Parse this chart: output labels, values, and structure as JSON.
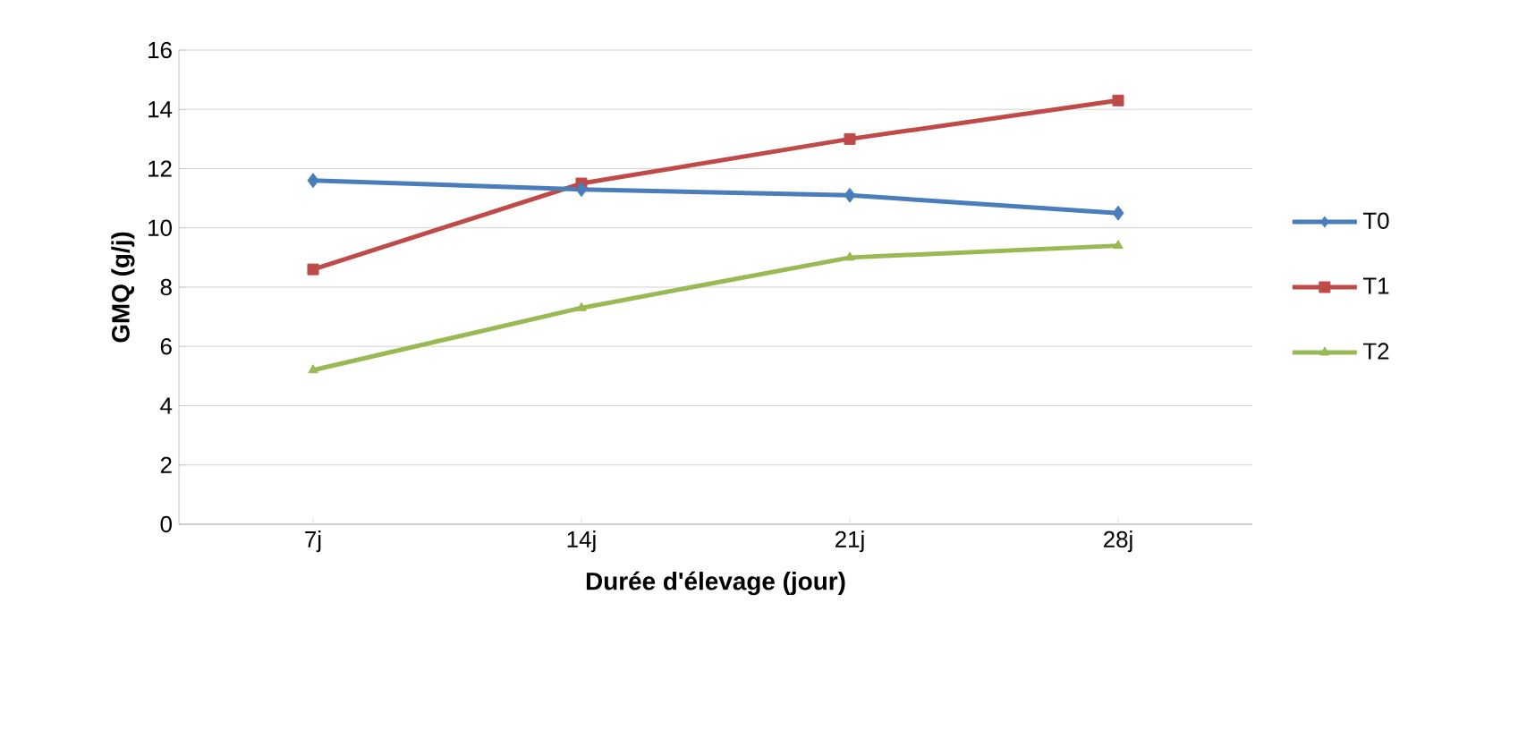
{
  "chart_data": {
    "type": "line",
    "xlabel": "Durée d'élevage (jour)",
    "ylabel": "GMQ (g/j)",
    "categories": [
      "7j",
      "14j",
      "21j",
      "28j"
    ],
    "series": [
      {
        "name": "T0",
        "color": "#4a7ebb",
        "marker": "diamond",
        "values": [
          11.6,
          11.3,
          11.1,
          10.5
        ]
      },
      {
        "name": "T1",
        "color": "#be4b48",
        "marker": "square",
        "values": [
          8.6,
          11.5,
          13.0,
          14.3
        ]
      },
      {
        "name": "T2",
        "color": "#98b954",
        "marker": "triangle",
        "values": [
          5.2,
          7.3,
          9.0,
          9.4
        ]
      }
    ],
    "ylim": [
      0,
      16
    ],
    "yticks": [
      0,
      2,
      4,
      6,
      8,
      10,
      12,
      14,
      16
    ],
    "grid": "y",
    "legend": "right",
    "line_style": "solid"
  }
}
